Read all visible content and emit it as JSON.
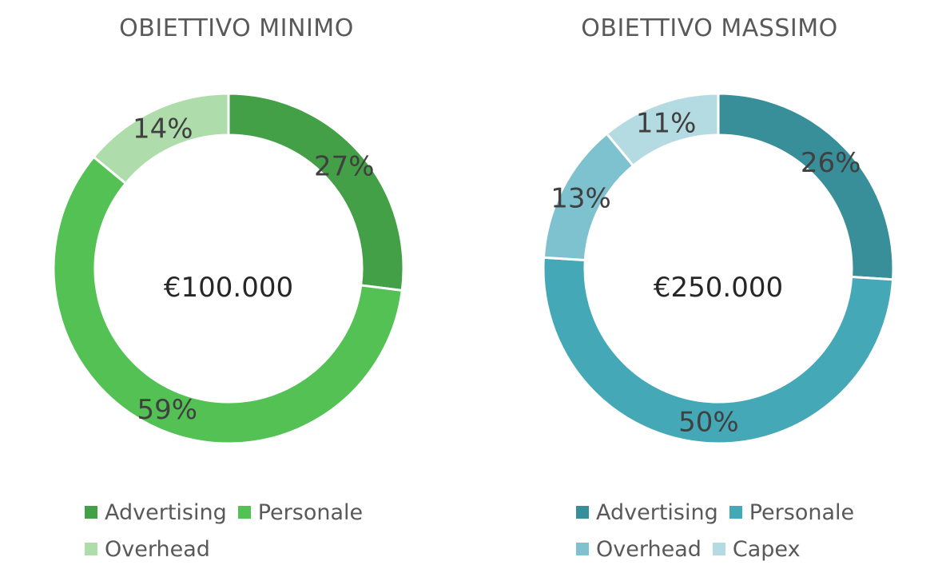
{
  "chart_data": [
    {
      "type": "pie",
      "title": "OBIETTIVO MINIMO",
      "center_label": "€100.000",
      "categories": [
        "Advertising",
        "Personale",
        "Overhead"
      ],
      "values": [
        27,
        59,
        14
      ],
      "data_labels": [
        "27%",
        "59%",
        "14%"
      ],
      "colors": [
        "#43a047",
        "#53c153",
        "#aedcaa"
      ],
      "donut": true,
      "legend_position": "bottom"
    },
    {
      "type": "pie",
      "title": "OBIETTIVO MASSIMO",
      "center_label": "€250.000",
      "categories": [
        "Advertising",
        "Personale",
        "Overhead",
        "Capex"
      ],
      "values": [
        26,
        50,
        13,
        11
      ],
      "data_labels": [
        "26%",
        "50%",
        "13%",
        "11%"
      ],
      "colors": [
        "#388e99",
        "#45a8b7",
        "#7fc2cf",
        "#b5dbe2"
      ],
      "donut": true,
      "legend_position": "bottom"
    }
  ]
}
